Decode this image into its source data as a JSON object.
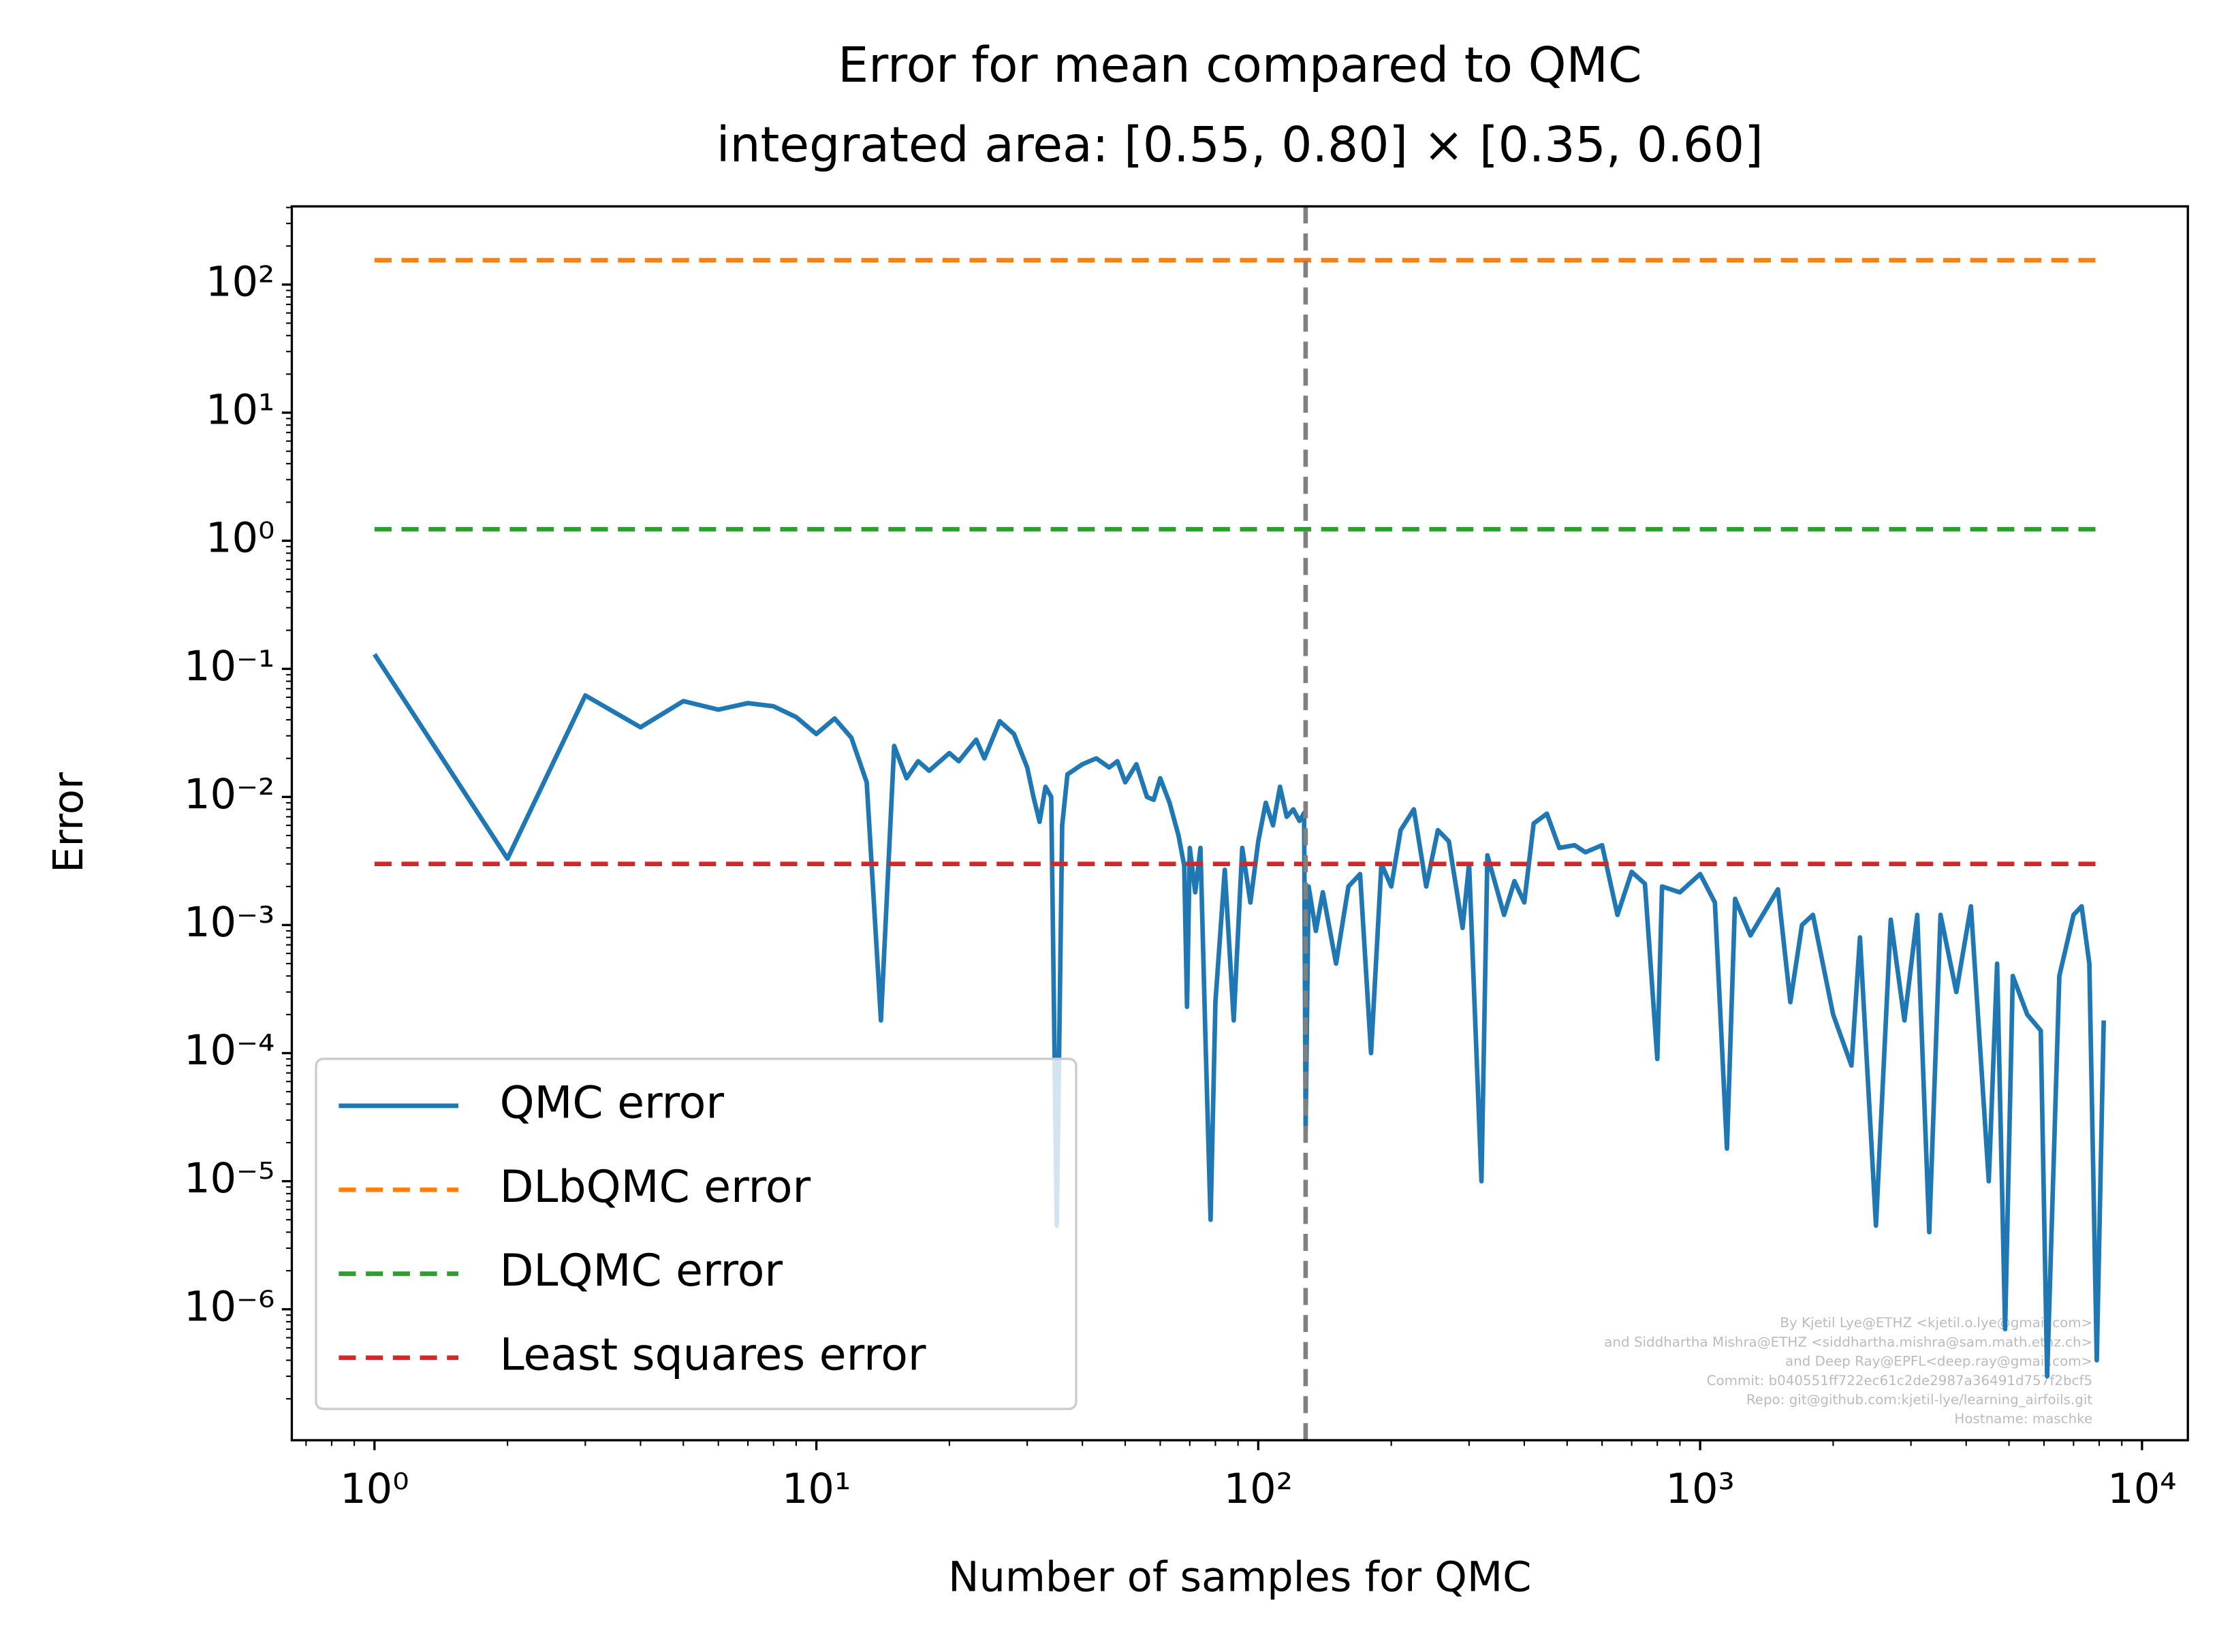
{
  "chart_data": {
    "type": "line",
    "title": "Error for mean compared to QMC",
    "subtitle": "integrated area: [0.55, 0.80] × [0.35, 0.60]",
    "x_label": "Number of samples for QMC",
    "y_label": "Error",
    "x_scale": "log",
    "y_scale": "log",
    "xlim": [
      0.65,
      12700
    ],
    "ylim": [
      9.5e-08,
      408
    ],
    "xticks": [
      {
        "value": 1,
        "label": "10⁰"
      },
      {
        "value": 10,
        "label": "10¹"
      },
      {
        "value": 100,
        "label": "10²"
      },
      {
        "value": 1000,
        "label": "10³"
      },
      {
        "value": 10000,
        "label": "10⁴"
      }
    ],
    "yticks": [
      {
        "value": 1e-06,
        "label": "10⁻⁶"
      },
      {
        "value": 1e-05,
        "label": "10⁻⁵"
      },
      {
        "value": 0.0001,
        "label": "10⁻⁴"
      },
      {
        "value": 0.001,
        "label": "10⁻³"
      },
      {
        "value": 0.01,
        "label": "10⁻²"
      },
      {
        "value": 0.1,
        "label": "10⁻¹"
      },
      {
        "value": 1,
        "label": "10⁰"
      },
      {
        "value": 10,
        "label": "10¹"
      },
      {
        "value": 100,
        "label": "10²"
      }
    ],
    "legend": "lower left",
    "vline": {
      "x": 128,
      "color": "#808080"
    },
    "series": [
      {
        "name": "QMC error",
        "color": "#1f77b4",
        "style": "solid",
        "x": [
          1,
          2,
          3,
          4,
          5,
          6,
          7,
          8,
          9,
          10,
          11,
          12,
          13,
          14,
          15,
          16,
          17,
          18,
          20,
          21,
          23,
          24,
          26,
          28,
          30,
          31,
          32,
          33,
          34,
          35,
          36,
          37,
          40,
          43,
          46,
          48,
          50,
          53,
          56,
          58,
          60,
          63,
          66,
          68,
          69,
          70,
          72,
          74,
          76,
          78,
          80,
          84,
          88,
          92,
          96,
          100,
          104,
          108,
          112,
          116,
          120,
          124,
          127,
          128,
          130,
          135,
          140,
          150,
          160,
          170,
          180,
          190,
          200,
          210,
          225,
          240,
          255,
          270,
          290,
          300,
          320,
          330,
          360,
          380,
          400,
          420,
          450,
          480,
          520,
          550,
          600,
          650,
          700,
          750,
          800,
          820,
          900,
          1000,
          1080,
          1150,
          1200,
          1300,
          1500,
          1600,
          1700,
          1800,
          2000,
          2200,
          2300,
          2500,
          2700,
          2900,
          3100,
          3300,
          3500,
          3800,
          4100,
          4500,
          4700,
          4900,
          5100,
          5500,
          5900,
          6100,
          6500,
          7000,
          7300,
          7600,
          7900,
          8192
        ],
        "values": [
          0.13,
          0.0033,
          0.062,
          0.035,
          0.056,
          0.048,
          0.054,
          0.051,
          0.042,
          0.031,
          0.041,
          0.029,
          0.013,
          0.00018,
          0.025,
          0.014,
          0.019,
          0.016,
          0.022,
          0.019,
          0.028,
          0.02,
          0.039,
          0.031,
          0.017,
          0.01,
          0.0064,
          0.012,
          0.01,
          4.5e-06,
          0.006,
          0.015,
          0.018,
          0.02,
          0.017,
          0.019,
          0.013,
          0.018,
          0.01,
          0.0095,
          0.014,
          0.009,
          0.005,
          0.0029,
          0.00023,
          0.004,
          0.0018,
          0.004,
          0.00012,
          5e-06,
          0.00025,
          0.0027,
          0.00018,
          0.004,
          0.0015,
          0.0045,
          0.009,
          0.006,
          0.012,
          0.007,
          0.008,
          0.0065,
          0.0075,
          2.5e-05,
          0.002,
          0.0009,
          0.0018,
          0.0005,
          0.002,
          0.0025,
          0.0001,
          0.003,
          0.002,
          0.0055,
          0.008,
          0.002,
          0.0055,
          0.0045,
          0.00095,
          0.003,
          1e-05,
          0.0035,
          0.0012,
          0.0022,
          0.0015,
          0.0062,
          0.0074,
          0.004,
          0.0042,
          0.0037,
          0.0042,
          0.0012,
          0.0026,
          0.0021,
          9e-05,
          0.002,
          0.0018,
          0.0025,
          0.0015,
          1.8e-05,
          0.0016,
          0.00083,
          0.0019,
          0.00025,
          0.001,
          0.0012,
          0.0002,
          8e-05,
          0.0008,
          4.5e-06,
          0.0011,
          0.00018,
          0.0012,
          4e-06,
          0.0012,
          0.0003,
          0.0014,
          1e-05,
          0.0005,
          7e-07,
          0.0004,
          0.0002,
          0.00015,
          3e-07,
          0.0004,
          0.0012,
          0.0014,
          0.0005,
          4e-07,
          0.00018
        ]
      },
      {
        "name": "DLbQMC error",
        "color": "#ff7f0e",
        "style": "dashed",
        "x": [
          1,
          8192
        ],
        "values": [
          155,
          155
        ]
      },
      {
        "name": "DLQMC error",
        "color": "#2ca02c",
        "style": "dashed",
        "x": [
          1,
          8192
        ],
        "values": [
          1.23,
          1.23
        ]
      },
      {
        "name": "Least squares error",
        "color": "#d62728",
        "style": "dashed",
        "x": [
          1,
          8192
        ],
        "values": [
          0.003,
          0.003
        ]
      }
    ],
    "watermark": [
      "By Kjetil Lye@ETHZ <kjetil.o.lye@gmail.com>",
      "and Siddhartha Mishra@ETHZ <siddhartha.mishra@sam.math.ethz.ch>",
      "and Deep Ray@EPFL<deep.ray@gmail.com>",
      "Commit: b040551ff722ec61c2de2987a36491d757f2bcf5",
      "Repo: git@github.com:kjetil-lye/learning_airfoils.git",
      "Hostname: maschke"
    ]
  }
}
